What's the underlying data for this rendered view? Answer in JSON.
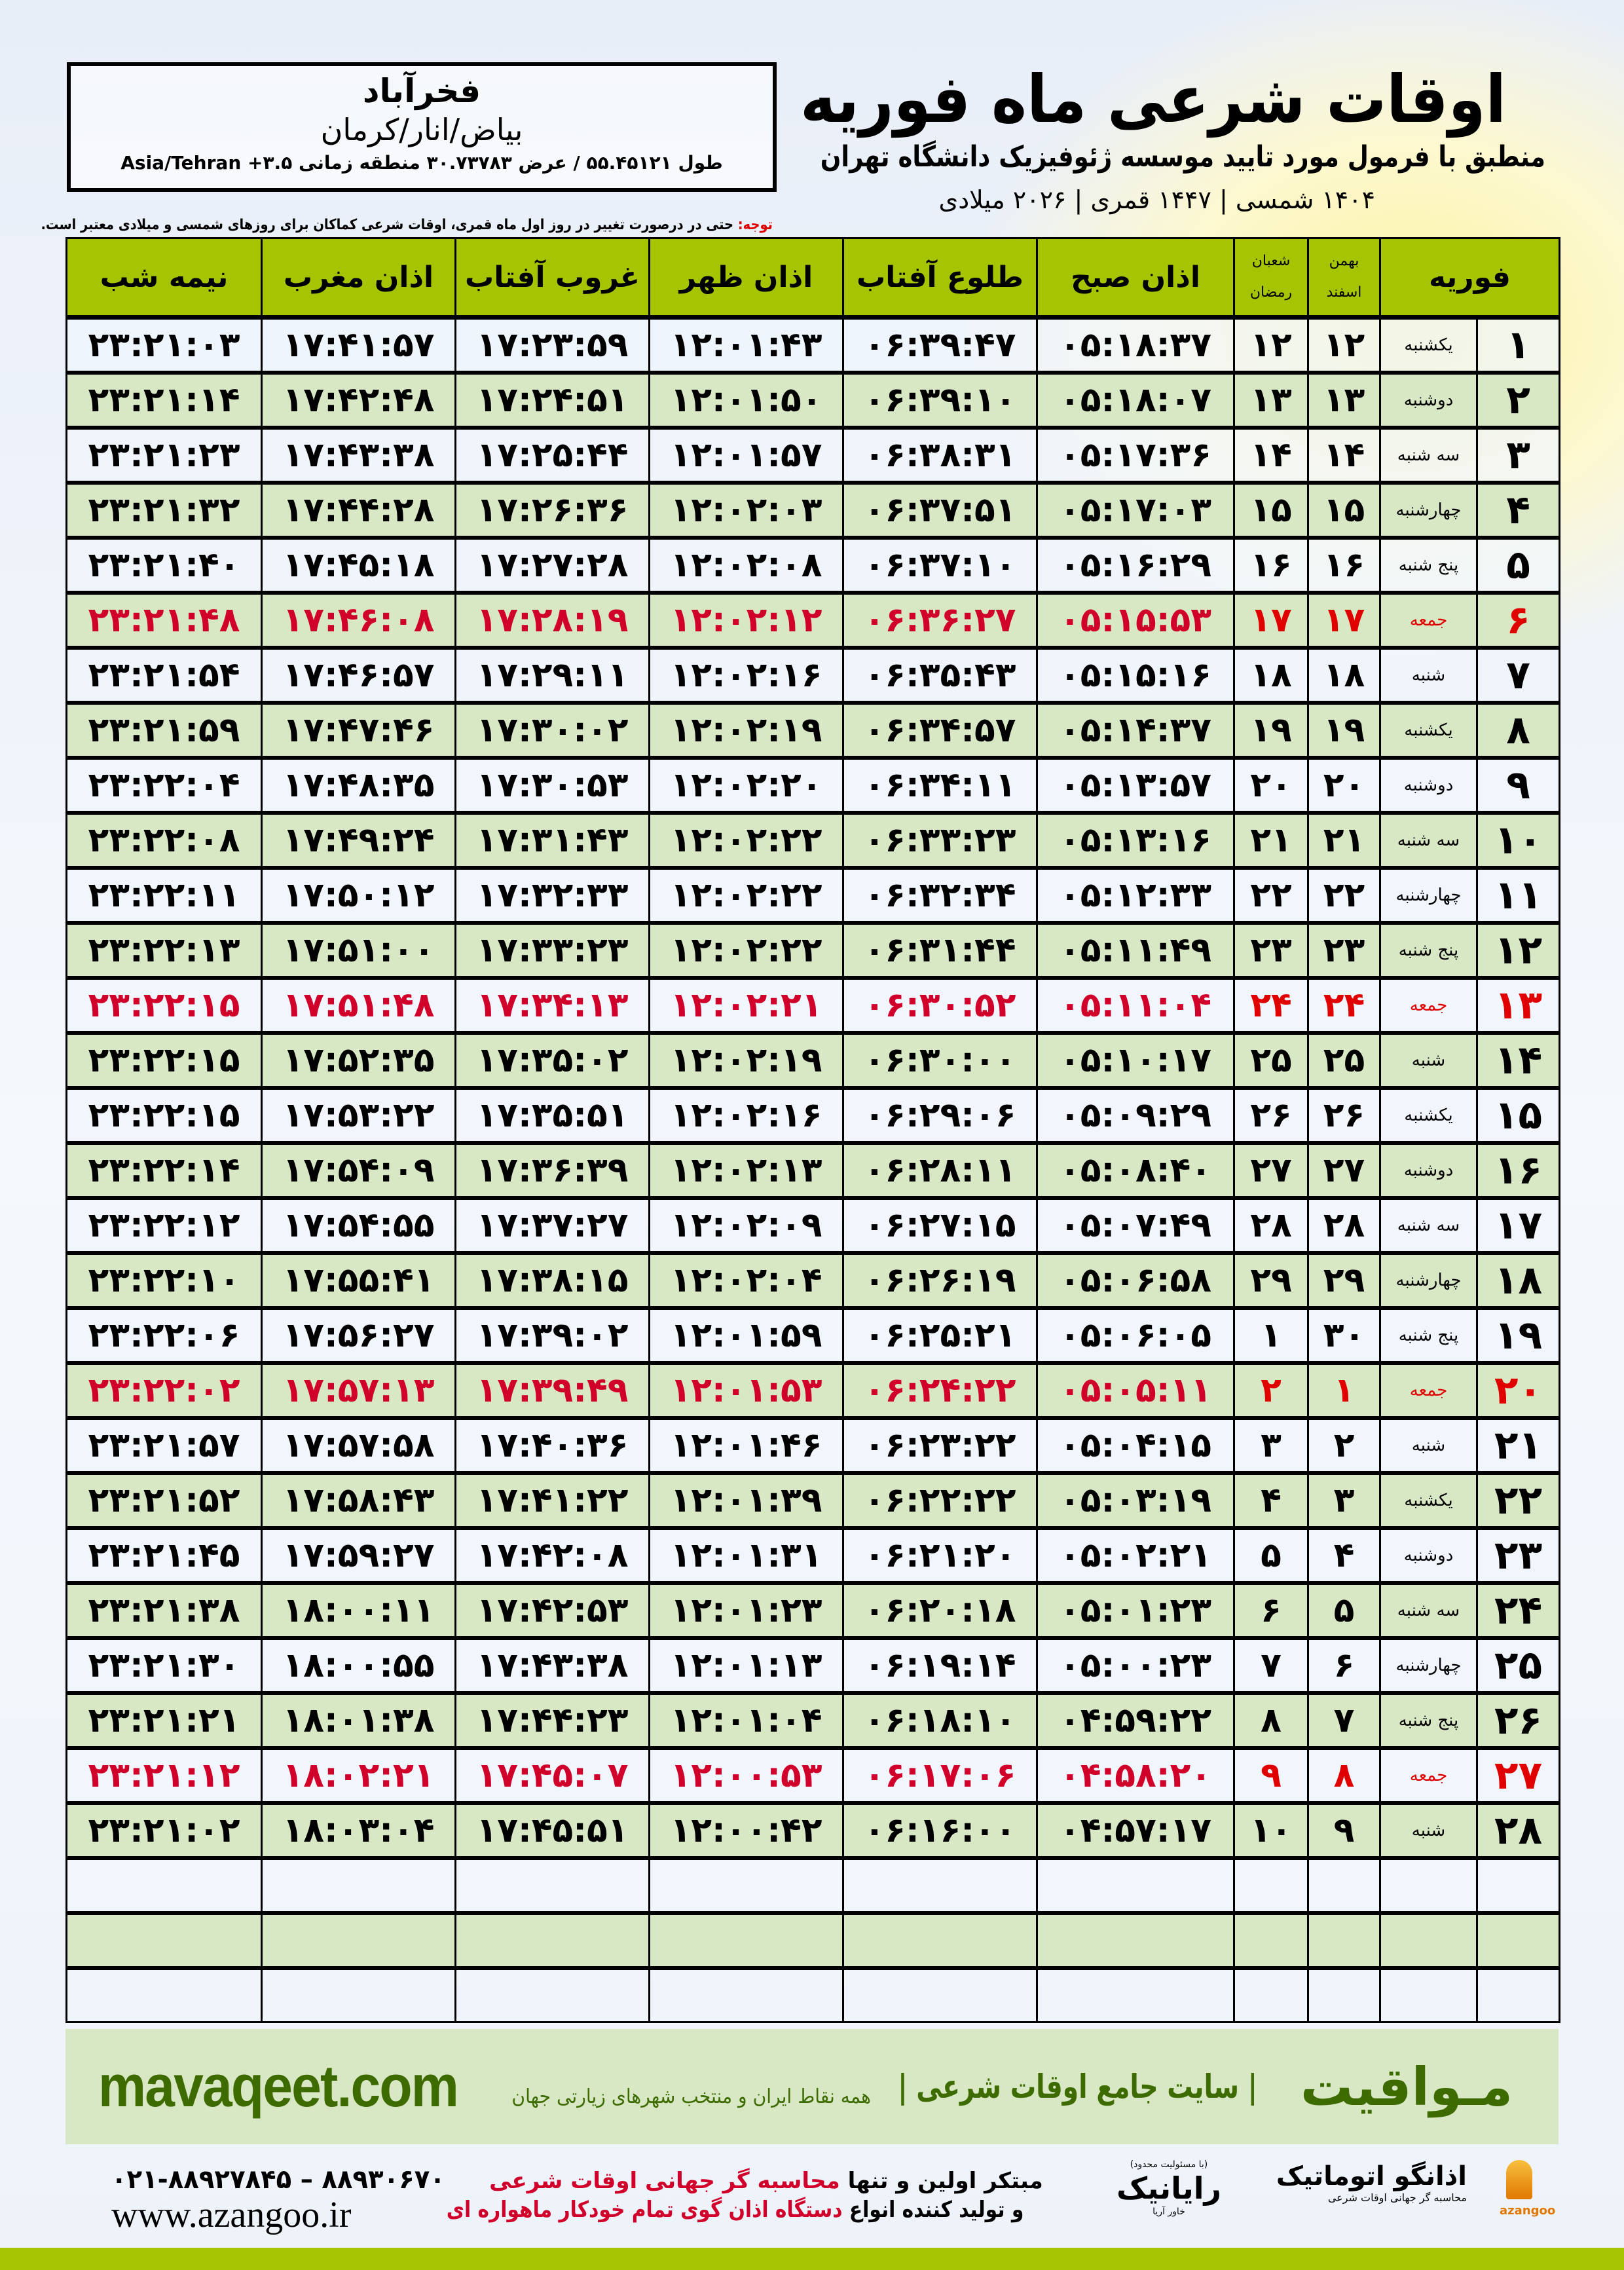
{
  "location": {
    "city": "فخرآباد",
    "region": "بیاض/انار/کرمان",
    "coords": "طول ۵۵.۴۵۱۲۱ / عرض ۳۰.۷۳۷۸۳ منطقه زمانی ۳.۵+ Asia/Tehran"
  },
  "header": {
    "title": "اوقات شرعی ماه فوریه",
    "subtitle": "منطبق با فرمول مورد تایید موسسه ژئوفیزیک دانشگاه تهران",
    "dates": "۱۴۰۴ شمسی | ۱۴۴۷ قمری | ۲۰۲۶ میلادی"
  },
  "note": {
    "label": "توجه:",
    "text": " حتی در درصورت تغییر در روز اول ماه قمری، اوقات شرعی کماکان برای روزهای شمسی و میلادی معتبر است."
  },
  "columns": {
    "month": "فوریه",
    "solar_top": "بهمن",
    "solar_bottom": "اسفند",
    "lunar_top": "شعبان",
    "lunar_bottom": "رمضان",
    "fajr": "اذان صبح",
    "sunrise": "طلوع آفتاب",
    "dhuhr": "اذان ظهر",
    "sunset": "غروب آفتاب",
    "maghrib": "اذان مغرب",
    "midnight": "نیمه شب"
  },
  "colors": {
    "header_green": "#a7c400",
    "row_green": "#d8e7c4",
    "holiday_red": "#e00000",
    "brand_green": "#3d6b00"
  },
  "rows": [
    [
      "۱",
      "یکشنبه",
      "۱۲",
      "۱۲",
      "۰۵:۱۸:۳۷",
      "۰۶:۳۹:۴۷",
      "۱۲:۰۱:۴۳",
      "۱۷:۲۳:۵۹",
      "۱۷:۴۱:۵۷",
      "۲۳:۲۱:۰۳",
      false
    ],
    [
      "۲",
      "دوشنبه",
      "۱۳",
      "۱۳",
      "۰۵:۱۸:۰۷",
      "۰۶:۳۹:۱۰",
      "۱۲:۰۱:۵۰",
      "۱۷:۲۴:۵۱",
      "۱۷:۴۲:۴۸",
      "۲۳:۲۱:۱۴",
      false
    ],
    [
      "۳",
      "سه شنبه",
      "۱۴",
      "۱۴",
      "۰۵:۱۷:۳۶",
      "۰۶:۳۸:۳۱",
      "۱۲:۰۱:۵۷",
      "۱۷:۲۵:۴۴",
      "۱۷:۴۳:۳۸",
      "۲۳:۲۱:۲۳",
      false
    ],
    [
      "۴",
      "چهارشنبه",
      "۱۵",
      "۱۵",
      "۰۵:۱۷:۰۳",
      "۰۶:۳۷:۵۱",
      "۱۲:۰۲:۰۳",
      "۱۷:۲۶:۳۶",
      "۱۷:۴۴:۲۸",
      "۲۳:۲۱:۳۲",
      false
    ],
    [
      "۵",
      "پنج شنبه",
      "۱۶",
      "۱۶",
      "۰۵:۱۶:۲۹",
      "۰۶:۳۷:۱۰",
      "۱۲:۰۲:۰۸",
      "۱۷:۲۷:۲۸",
      "۱۷:۴۵:۱۸",
      "۲۳:۲۱:۴۰",
      false
    ],
    [
      "۶",
      "جمعه",
      "۱۷",
      "۱۷",
      "۰۵:۱۵:۵۳",
      "۰۶:۳۶:۲۷",
      "۱۲:۰۲:۱۲",
      "۱۷:۲۸:۱۹",
      "۱۷:۴۶:۰۸",
      "۲۳:۲۱:۴۸",
      true
    ],
    [
      "۷",
      "شنبه",
      "۱۸",
      "۱۸",
      "۰۵:۱۵:۱۶",
      "۰۶:۳۵:۴۳",
      "۱۲:۰۲:۱۶",
      "۱۷:۲۹:۱۱",
      "۱۷:۴۶:۵۷",
      "۲۳:۲۱:۵۴",
      false
    ],
    [
      "۸",
      "یکشنبه",
      "۱۹",
      "۱۹",
      "۰۵:۱۴:۳۷",
      "۰۶:۳۴:۵۷",
      "۱۲:۰۲:۱۹",
      "۱۷:۳۰:۰۲",
      "۱۷:۴۷:۴۶",
      "۲۳:۲۱:۵۹",
      false
    ],
    [
      "۹",
      "دوشنبه",
      "۲۰",
      "۲۰",
      "۰۵:۱۳:۵۷",
      "۰۶:۳۴:۱۱",
      "۱۲:۰۲:۲۰",
      "۱۷:۳۰:۵۳",
      "۱۷:۴۸:۳۵",
      "۲۳:۲۲:۰۴",
      false
    ],
    [
      "۱۰",
      "سه شنبه",
      "۲۱",
      "۲۱",
      "۰۵:۱۳:۱۶",
      "۰۶:۳۳:۲۳",
      "۱۲:۰۲:۲۲",
      "۱۷:۳۱:۴۳",
      "۱۷:۴۹:۲۴",
      "۲۳:۲۲:۰۸",
      false
    ],
    [
      "۱۱",
      "چهارشنبه",
      "۲۲",
      "۲۲",
      "۰۵:۱۲:۳۳",
      "۰۶:۳۲:۳۴",
      "۱۲:۰۲:۲۲",
      "۱۷:۳۲:۳۳",
      "۱۷:۵۰:۱۲",
      "۲۳:۲۲:۱۱",
      false
    ],
    [
      "۱۲",
      "پنج شنبه",
      "۲۳",
      "۲۳",
      "۰۵:۱۱:۴۹",
      "۰۶:۳۱:۴۴",
      "۱۲:۰۲:۲۲",
      "۱۷:۳۳:۲۳",
      "۱۷:۵۱:۰۰",
      "۲۳:۲۲:۱۳",
      false
    ],
    [
      "۱۳",
      "جمعه",
      "۲۴",
      "۲۴",
      "۰۵:۱۱:۰۴",
      "۰۶:۳۰:۵۲",
      "۱۲:۰۲:۲۱",
      "۱۷:۳۴:۱۳",
      "۱۷:۵۱:۴۸",
      "۲۳:۲۲:۱۵",
      true
    ],
    [
      "۱۴",
      "شنبه",
      "۲۵",
      "۲۵",
      "۰۵:۱۰:۱۷",
      "۰۶:۳۰:۰۰",
      "۱۲:۰۲:۱۹",
      "۱۷:۳۵:۰۲",
      "۱۷:۵۲:۳۵",
      "۲۳:۲۲:۱۵",
      false
    ],
    [
      "۱۵",
      "یکشنبه",
      "۲۶",
      "۲۶",
      "۰۵:۰۹:۲۹",
      "۰۶:۲۹:۰۶",
      "۱۲:۰۲:۱۶",
      "۱۷:۳۵:۵۱",
      "۱۷:۵۳:۲۲",
      "۲۳:۲۲:۱۵",
      false
    ],
    [
      "۱۶",
      "دوشنبه",
      "۲۷",
      "۲۷",
      "۰۵:۰۸:۴۰",
      "۰۶:۲۸:۱۱",
      "۱۲:۰۲:۱۳",
      "۱۷:۳۶:۳۹",
      "۱۷:۵۴:۰۹",
      "۲۳:۲۲:۱۴",
      false
    ],
    [
      "۱۷",
      "سه شنبه",
      "۲۸",
      "۲۸",
      "۰۵:۰۷:۴۹",
      "۰۶:۲۷:۱۵",
      "۱۲:۰۲:۰۹",
      "۱۷:۳۷:۲۷",
      "۱۷:۵۴:۵۵",
      "۲۳:۲۲:۱۲",
      false
    ],
    [
      "۱۸",
      "چهارشنبه",
      "۲۹",
      "۲۹",
      "۰۵:۰۶:۵۸",
      "۰۶:۲۶:۱۹",
      "۱۲:۰۲:۰۴",
      "۱۷:۳۸:۱۵",
      "۱۷:۵۵:۴۱",
      "۲۳:۲۲:۱۰",
      false
    ],
    [
      "۱۹",
      "پنج شنبه",
      "۳۰",
      "۱",
      "۰۵:۰۶:۰۵",
      "۰۶:۲۵:۲۱",
      "۱۲:۰۱:۵۹",
      "۱۷:۳۹:۰۲",
      "۱۷:۵۶:۲۷",
      "۲۳:۲۲:۰۶",
      false
    ],
    [
      "۲۰",
      "جمعه",
      "۱",
      "۲",
      "۰۵:۰۵:۱۱",
      "۰۶:۲۴:۲۲",
      "۱۲:۰۱:۵۳",
      "۱۷:۳۹:۴۹",
      "۱۷:۵۷:۱۳",
      "۲۳:۲۲:۰۲",
      true
    ],
    [
      "۲۱",
      "شنبه",
      "۲",
      "۳",
      "۰۵:۰۴:۱۵",
      "۰۶:۲۳:۲۲",
      "۱۲:۰۱:۴۶",
      "۱۷:۴۰:۳۶",
      "۱۷:۵۷:۵۸",
      "۲۳:۲۱:۵۷",
      false
    ],
    [
      "۲۲",
      "یکشنبه",
      "۳",
      "۴",
      "۰۵:۰۳:۱۹",
      "۰۶:۲۲:۲۲",
      "۱۲:۰۱:۳۹",
      "۱۷:۴۱:۲۲",
      "۱۷:۵۸:۴۳",
      "۲۳:۲۱:۵۲",
      false
    ],
    [
      "۲۳",
      "دوشنبه",
      "۴",
      "۵",
      "۰۵:۰۲:۲۱",
      "۰۶:۲۱:۲۰",
      "۱۲:۰۱:۳۱",
      "۱۷:۴۲:۰۸",
      "۱۷:۵۹:۲۷",
      "۲۳:۲۱:۴۵",
      false
    ],
    [
      "۲۴",
      "سه شنبه",
      "۵",
      "۶",
      "۰۵:۰۱:۲۳",
      "۰۶:۲۰:۱۸",
      "۱۲:۰۱:۲۳",
      "۱۷:۴۲:۵۳",
      "۱۸:۰۰:۱۱",
      "۲۳:۲۱:۳۸",
      false
    ],
    [
      "۲۵",
      "چهارشنبه",
      "۶",
      "۷",
      "۰۵:۰۰:۲۳",
      "۰۶:۱۹:۱۴",
      "۱۲:۰۱:۱۳",
      "۱۷:۴۳:۳۸",
      "۱۸:۰۰:۵۵",
      "۲۳:۲۱:۳۰",
      false
    ],
    [
      "۲۶",
      "پنج شنبه",
      "۷",
      "۸",
      "۰۴:۵۹:۲۲",
      "۰۶:۱۸:۱۰",
      "۱۲:۰۱:۰۴",
      "۱۷:۴۴:۲۳",
      "۱۸:۰۱:۳۸",
      "۲۳:۲۱:۲۱",
      false
    ],
    [
      "۲۷",
      "جمعه",
      "۸",
      "۹",
      "۰۴:۵۸:۲۰",
      "۰۶:۱۷:۰۶",
      "۱۲:۰۰:۵۳",
      "۱۷:۴۵:۰۷",
      "۱۸:۰۲:۲۱",
      "۲۳:۲۱:۱۲",
      true
    ],
    [
      "۲۸",
      "شنبه",
      "۹",
      "۱۰",
      "۰۴:۵۷:۱۷",
      "۰۶:۱۶:۰۰",
      "۱۲:۰۰:۴۲",
      "۱۷:۴۵:۵۱",
      "۱۸:۰۳:۰۴",
      "۲۳:۲۱:۰۲",
      false
    ]
  ],
  "footer": {
    "brand": "مـواقیت",
    "slogan": "| سایت جامع اوقات شرعی |",
    "slogan2": "همه نقاط ایران و منتخب شهرهای زیارتی جهان",
    "site": "mavaqeet.com",
    "phones": "۰۲۱-۸۸۹۲۷۸۴۵ – ۸۸۹۳۰۶۷۰",
    "az_site": "www.azangoo.ir",
    "promo1a": "مبتکر اولین و تنها ",
    "promo1b": "محاسبه گر جهانی اوقات شرعی",
    "promo2a": "و تولید کننده انواع ",
    "promo2b": "دستگاه اذان گوی تمام خودکار ماهواره ای",
    "rayanik_note": "(با مسئولیت محدود)",
    "rayanik": "رایانیک",
    "rayanik_sub": "خاور آریا",
    "azangoo_logo": "اذانگو اتوماتیک",
    "azangoo_sub": "محاسبه گر جهانی اوقات شرعی",
    "azangoo_en": "azangoo"
  }
}
